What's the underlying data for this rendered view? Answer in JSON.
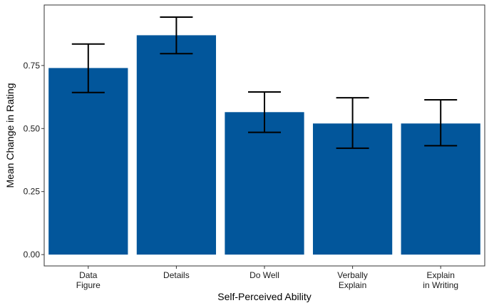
{
  "chart_data": {
    "type": "bar",
    "title": "",
    "xlabel": "Self-Perceived Ability",
    "ylabel": "Mean Change in Rating",
    "categories": [
      [
        "Data",
        "Figure"
      ],
      [
        "Details"
      ],
      [
        "Do Well"
      ],
      [
        "Verbally",
        "Explain"
      ],
      [
        "Explain",
        "in Writing"
      ]
    ],
    "values": [
      0.74,
      0.87,
      0.565,
      0.52,
      0.52
    ],
    "error_low": [
      0.643,
      0.797,
      0.485,
      0.422,
      0.432
    ],
    "error_high": [
      0.835,
      0.942,
      0.645,
      0.622,
      0.614
    ],
    "yticks": [
      "0.00",
      "0.25",
      "0.50",
      "0.75"
    ],
    "ytick_values": [
      0,
      0.25,
      0.5,
      0.75
    ],
    "ylim": [
      -0.045,
      0.99
    ],
    "grid": false,
    "legend": "none",
    "bar_color": "#02569b",
    "errorbar_color": "#000000",
    "panel_border_color": "#333333"
  }
}
